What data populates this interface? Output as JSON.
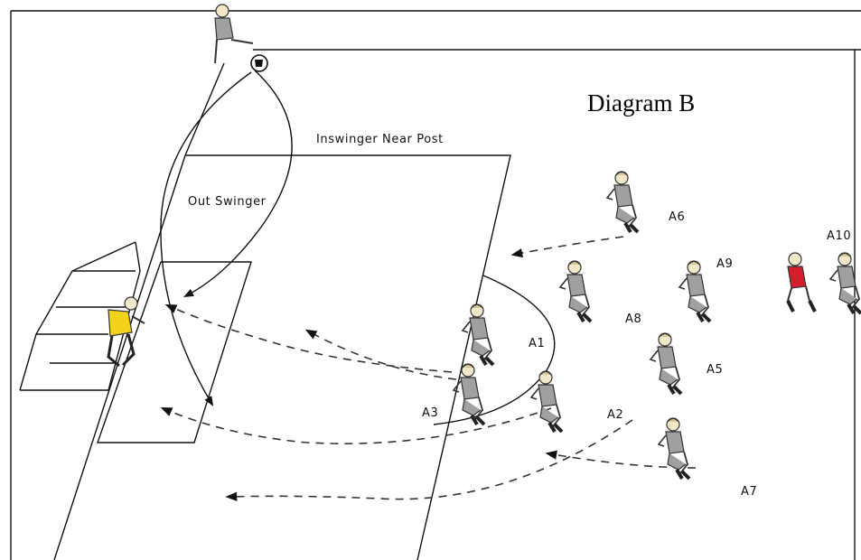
{
  "diagram_title": "Diagram B",
  "labels": {
    "inswinger": "Inswinger Near Post",
    "outswinger": "Out Swinger"
  },
  "players": [
    {
      "id": "A1",
      "label": "A1",
      "color": "#9a9a9a"
    },
    {
      "id": "A2",
      "label": "A2",
      "color": "#9a9a9a"
    },
    {
      "id": "A3",
      "label": "A3",
      "color": "#9a9a9a"
    },
    {
      "id": "A5",
      "label": "A5",
      "color": "#9a9a9a"
    },
    {
      "id": "A6",
      "label": "A6",
      "color": "#9a9a9a"
    },
    {
      "id": "A7",
      "label": "A7",
      "color": "#9a9a9a"
    },
    {
      "id": "A8",
      "label": "A8",
      "color": "#9a9a9a"
    },
    {
      "id": "A9",
      "label": "A9",
      "color": "#9a9a9a"
    },
    {
      "id": "A10",
      "label": "A10",
      "color": "#d21f2b"
    }
  ],
  "goalkeeper_color": "#f2d21a",
  "kit_grey": "#9a9a9a"
}
